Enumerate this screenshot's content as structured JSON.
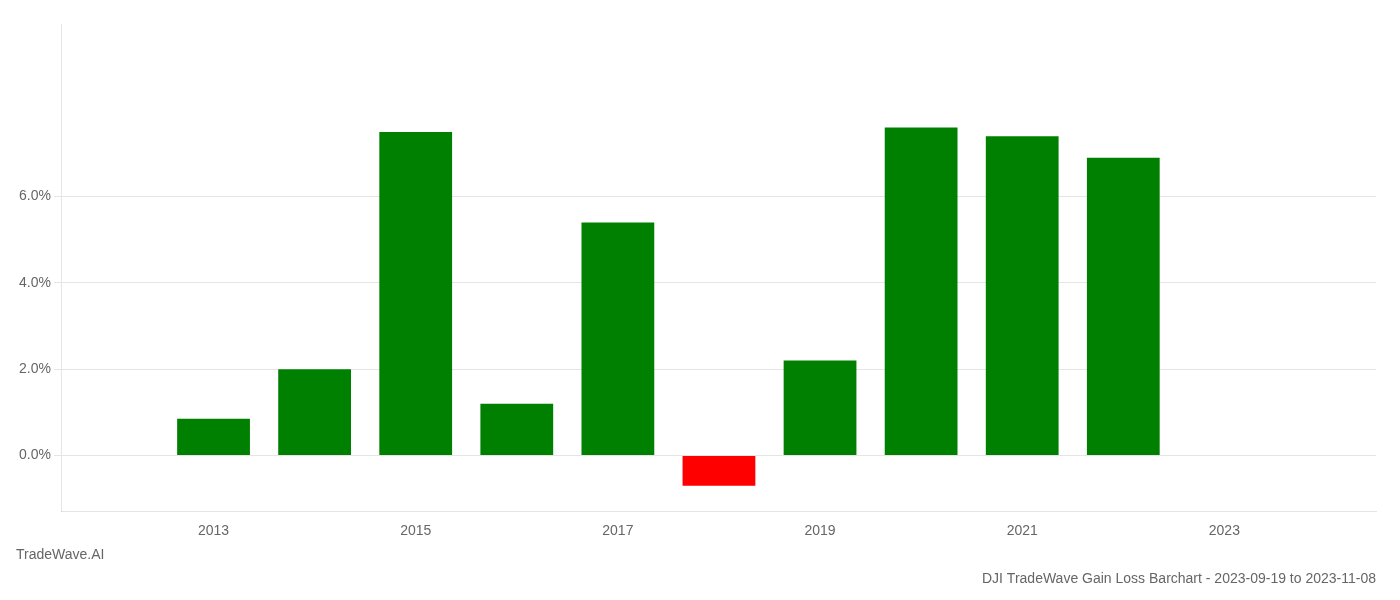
{
  "chart_data": {
    "type": "bar",
    "title": "DJI TradeWave Gain Loss Barchart - 2023-09-19 to 2023-11-08",
    "annotations": [
      "TradeWave.AI"
    ],
    "x": [
      2013,
      2014,
      2015,
      2016,
      2017,
      2018,
      2019,
      2020,
      2021,
      2022
    ],
    "values": [
      0.0085,
      0.02,
      0.075,
      0.012,
      0.054,
      -0.007,
      0.022,
      0.076,
      0.074,
      0.069
    ],
    "colors": [
      "#008000",
      "#008000",
      "#008000",
      "#008000",
      "#008000",
      "#ff0000",
      "#008000",
      "#008000",
      "#008000",
      "#008000"
    ],
    "xlim": [
      2011.5,
      2024.5
    ],
    "xticks": [
      2013,
      2015,
      2017,
      2019,
      2021,
      2023
    ],
    "ylim": [
      -0.013,
      0.1
    ],
    "yticks": [
      {
        "value": 0.0,
        "label": "0.0%"
      },
      {
        "value": 0.02,
        "label": "2.0%"
      },
      {
        "value": 0.04,
        "label": "4.0%"
      },
      {
        "value": 0.06,
        "label": "6.0%"
      }
    ],
    "grid": "y"
  }
}
